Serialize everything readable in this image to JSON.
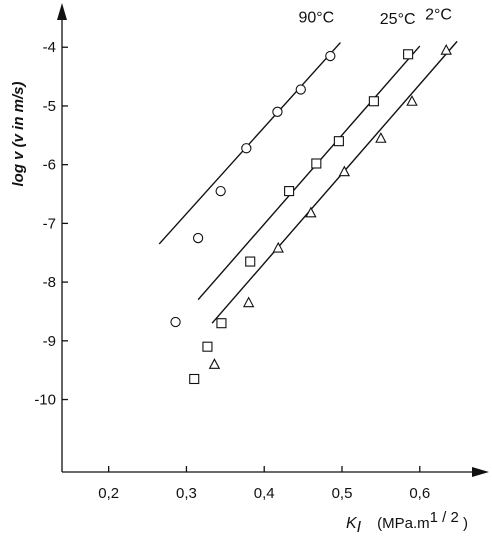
{
  "chart_data": {
    "type": "scatter",
    "title": "",
    "ylabel": "log v  (v in m/s)",
    "xlabel_symbol": "K",
    "xlabel_subscript": "I",
    "xlabel_units": "(MPa.m",
    "xlabel_units_exp": "1 / 2",
    "xlabel_units_close": " )",
    "xlim": [
      0.14,
      0.68
    ],
    "ylim": [
      -11.2,
      -3.4
    ],
    "x_ticks": [
      0.2,
      0.3,
      0.4,
      0.5,
      0.6
    ],
    "x_tick_labels": [
      "0,2",
      "0,3",
      "0,4",
      "0,5",
      "0,6"
    ],
    "y_ticks": [
      -4,
      -5,
      -6,
      -7,
      -8,
      -9,
      -10
    ],
    "y_tick_labels": [
      "-4",
      "-5",
      "-6",
      "-7",
      "-8",
      "-9",
      "-10"
    ],
    "grid": false,
    "series": [
      {
        "name": "90°C",
        "marker": "circle",
        "points": [
          {
            "x": 0.485,
            "y": -4.15
          },
          {
            "x": 0.447,
            "y": -4.72
          },
          {
            "x": 0.417,
            "y": -5.1
          },
          {
            "x": 0.377,
            "y": -5.72
          },
          {
            "x": 0.344,
            "y": -6.45
          },
          {
            "x": 0.315,
            "y": -7.25
          },
          {
            "x": 0.286,
            "y": -8.68
          }
        ],
        "fit_line": [
          {
            "x": 0.265,
            "y": -7.35
          },
          {
            "x": 0.498,
            "y": -3.92
          }
        ]
      },
      {
        "name": "25°C",
        "marker": "square",
        "points": [
          {
            "x": 0.585,
            "y": -4.12
          },
          {
            "x": 0.541,
            "y": -4.92
          },
          {
            "x": 0.496,
            "y": -5.6
          },
          {
            "x": 0.467,
            "y": -5.98
          },
          {
            "x": 0.432,
            "y": -6.45
          },
          {
            "x": 0.382,
            "y": -7.65
          },
          {
            "x": 0.345,
            "y": -8.7
          },
          {
            "x": 0.327,
            "y": -9.1
          },
          {
            "x": 0.31,
            "y": -9.65
          }
        ],
        "fit_line": [
          {
            "x": 0.315,
            "y": -8.3
          },
          {
            "x": 0.6,
            "y": -3.98
          }
        ]
      },
      {
        "name": "2°C",
        "marker": "triangle",
        "points": [
          {
            "x": 0.634,
            "y": -4.05
          },
          {
            "x": 0.59,
            "y": -4.92
          },
          {
            "x": 0.55,
            "y": -5.55
          },
          {
            "x": 0.503,
            "y": -6.12
          },
          {
            "x": 0.46,
            "y": -6.82
          },
          {
            "x": 0.418,
            "y": -7.42
          },
          {
            "x": 0.38,
            "y": -8.35
          },
          {
            "x": 0.336,
            "y": -9.4
          }
        ],
        "fit_line": [
          {
            "x": 0.333,
            "y": -8.7
          },
          {
            "x": 0.648,
            "y": -3.9
          }
        ]
      }
    ]
  }
}
